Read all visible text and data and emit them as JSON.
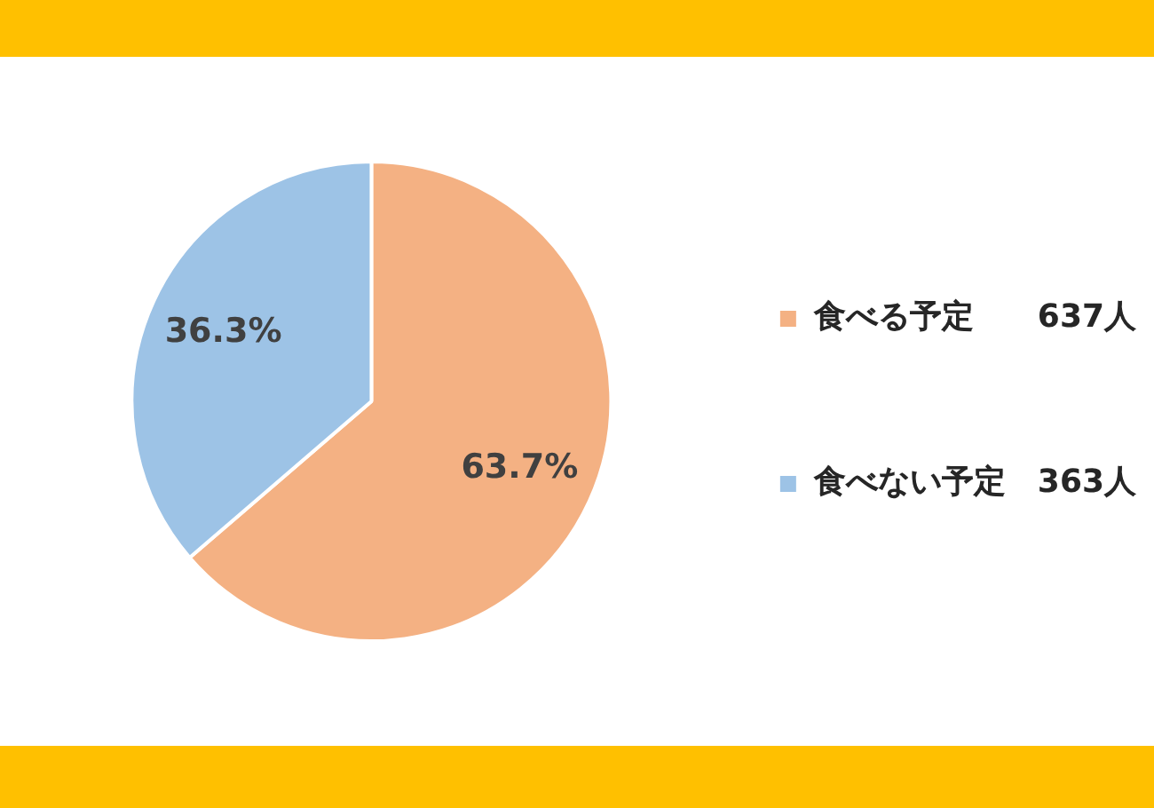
{
  "chart_data": {
    "type": "pie",
    "categories": [
      "食べる予定　　637人",
      "食べない予定　363人"
    ],
    "values": [
      63.7,
      36.3
    ],
    "colors": [
      "#f4b183",
      "#9dc3e6"
    ],
    "value_labels": [
      "63.7%",
      "36.3%"
    ],
    "legend": "right"
  }
}
